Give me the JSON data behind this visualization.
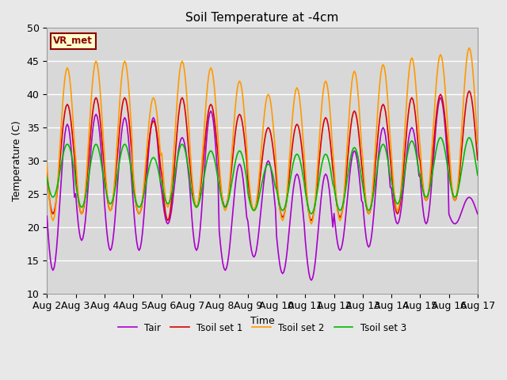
{
  "title": "Soil Temperature at -4cm",
  "xlabel": "Time",
  "ylabel": "Temperature (C)",
  "ylim": [
    10,
    50
  ],
  "xlim_days": [
    0,
    15
  ],
  "xtick_labels": [
    "Aug 2",
    "Aug 3",
    "Aug 4",
    "Aug 5",
    "Aug 6",
    "Aug 7",
    "Aug 8",
    "Aug 9",
    "Aug 10",
    "Aug 11",
    "Aug 12",
    "Aug 13",
    "Aug 14",
    "Aug 15",
    "Aug 16",
    "Aug 17"
  ],
  "annotation": "VR_met",
  "line_colors": [
    "#aa00cc",
    "#dd0000",
    "#ff9900",
    "#00bb00"
  ],
  "line_labels": [
    "Tair",
    "Tsoil set 1",
    "Tsoil set 2",
    "Tsoil set 3"
  ],
  "background_color": "#e8e8e8",
  "plot_bg_color": "#d8d8d8",
  "grid_color": "#ffffff",
  "n_days": 15,
  "hours_per_day": 24,
  "tair_min": [
    13.5,
    18.0,
    16.5,
    16.5,
    20.5,
    16.5,
    13.5,
    15.5,
    13.0,
    12.0,
    16.5,
    17.0,
    20.5,
    20.5,
    20.5
  ],
  "tair_max": [
    35.5,
    37.0,
    36.5,
    36.5,
    33.5,
    37.5,
    29.5,
    30.0,
    28.0,
    28.0,
    31.5,
    35.0,
    35.0,
    39.5,
    24.5
  ],
  "tsoil1_min": [
    22.0,
    22.0,
    22.5,
    22.0,
    21.0,
    23.0,
    23.0,
    22.5,
    21.5,
    21.0,
    21.5,
    22.0,
    22.0,
    24.0,
    24.0
  ],
  "tsoil1_max": [
    38.5,
    39.5,
    39.5,
    36.0,
    39.5,
    38.5,
    37.0,
    35.0,
    35.5,
    36.5,
    37.5,
    38.5,
    39.5,
    40.0,
    40.5
  ],
  "tsoil2_min": [
    21.0,
    22.0,
    22.5,
    22.0,
    23.0,
    23.0,
    22.5,
    22.5,
    21.0,
    20.5,
    21.0,
    22.0,
    22.5,
    24.0,
    24.0
  ],
  "tsoil2_max": [
    44.0,
    45.0,
    45.0,
    39.5,
    45.0,
    44.0,
    42.0,
    40.0,
    41.0,
    42.0,
    43.5,
    44.5,
    45.5,
    46.0,
    47.0
  ],
  "tsoil3_min": [
    24.5,
    23.0,
    23.5,
    23.0,
    23.5,
    23.0,
    23.0,
    22.5,
    22.5,
    22.0,
    22.5,
    22.5,
    23.5,
    24.5,
    24.5
  ],
  "tsoil3_max": [
    32.5,
    32.5,
    32.5,
    30.5,
    32.5,
    31.5,
    31.5,
    29.5,
    31.0,
    31.0,
    32.0,
    32.5,
    33.0,
    33.5,
    33.5
  ]
}
